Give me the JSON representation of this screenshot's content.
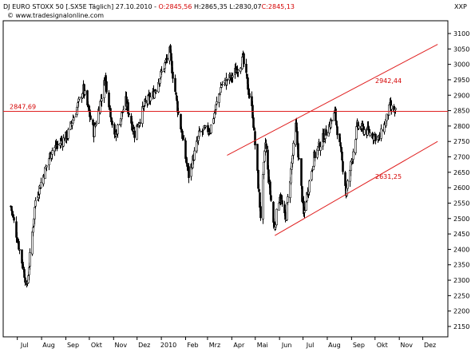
{
  "header": {
    "line1_prefix": "DJ EURO STOXX 50 [.SX5E  Täglich] 27.10.2010 - ",
    "open": "O:2845,56",
    "high": "H:2865,35",
    "low": "L:2830,07",
    "close": "C:2845,13",
    "copyright": "© www.tradesignalonline.com",
    "copyright_icon": "copyright-icon"
  },
  "colors": {
    "candle": "#000000",
    "line": "#e02020",
    "label": "#d40000",
    "grid_text": "#000000"
  },
  "chart_data": {
    "type": "candlestick",
    "title": "DJ EURO STOXX 50 [.SX5E  Täglich] 27.10.2010",
    "y_axis_label": "XXP",
    "y_range": [
      2125,
      3145
    ],
    "y_ticks": [
      "2150",
      "2200",
      "2250",
      "2300",
      "2350",
      "2400",
      "2450",
      "2500",
      "2550",
      "2600",
      "2650",
      "2700",
      "2750",
      "2800",
      "2850",
      "2900",
      "2950",
      "3000",
      "3050",
      "3100"
    ],
    "x_ticks": [
      "Jul",
      "Aug",
      "Sep",
      "Okt",
      "Nov",
      "Dez",
      "2010",
      "Feb",
      "Mrz",
      "Apr",
      "Mai",
      "Jun",
      "Jul",
      "Aug",
      "Sep",
      "Okt",
      "Nov",
      "Dez"
    ],
    "anchors": [
      [
        "2009-06-22",
        2540
      ],
      [
        "2009-07-13",
        2270
      ],
      [
        "2009-07-24",
        2560
      ],
      [
        "2009-08-13",
        2720
      ],
      [
        "2009-09-03",
        2770
      ],
      [
        "2009-09-23",
        2920
      ],
      [
        "2009-10-06",
        2780
      ],
      [
        "2009-10-21",
        2960
      ],
      [
        "2009-11-02",
        2760
      ],
      [
        "2009-11-16",
        2880
      ],
      [
        "2009-11-27",
        2775
      ],
      [
        "2009-12-10",
        2870
      ],
      [
        "2009-12-21",
        2900
      ],
      [
        "2010-01-11",
        3040
      ],
      [
        "2010-01-22",
        2840
      ],
      [
        "2010-02-05",
        2640
      ],
      [
        "2010-02-19",
        2780
      ],
      [
        "2010-03-04",
        2790
      ],
      [
        "2010-03-18",
        2935
      ],
      [
        "2010-04-01",
        2960
      ],
      [
        "2010-04-15",
        3015
      ],
      [
        "2010-04-27",
        2840
      ],
      [
        "2010-05-07",
        2510
      ],
      [
        "2010-05-13",
        2745
      ],
      [
        "2010-05-25",
        2465
      ],
      [
        "2010-06-01",
        2580
      ],
      [
        "2010-06-08",
        2490
      ],
      [
        "2010-06-21",
        2800
      ],
      [
        "2010-07-01",
        2510
      ],
      [
        "2010-07-15",
        2700
      ],
      [
        "2010-08-10",
        2840
      ],
      [
        "2010-08-25",
        2580
      ],
      [
        "2010-09-08",
        2800
      ],
      [
        "2010-09-22",
        2780
      ],
      [
        "2010-10-06",
        2760
      ],
      [
        "2010-10-20",
        2860
      ],
      [
        "2010-10-27",
        2845
      ]
    ],
    "annotations": {
      "horizontal_line": {
        "value": 2847.69,
        "label": "2847,69"
      },
      "upper_channel": {
        "start": [
          "2010-03-26",
          2705
        ],
        "end": [
          "2010-12-20",
          3065
        ],
        "label": "2942,44"
      },
      "lower_channel": {
        "start": [
          "2010-05-26",
          2445
        ],
        "end": [
          "2010-12-20",
          2750
        ],
        "label": "2631,25"
      }
    }
  }
}
